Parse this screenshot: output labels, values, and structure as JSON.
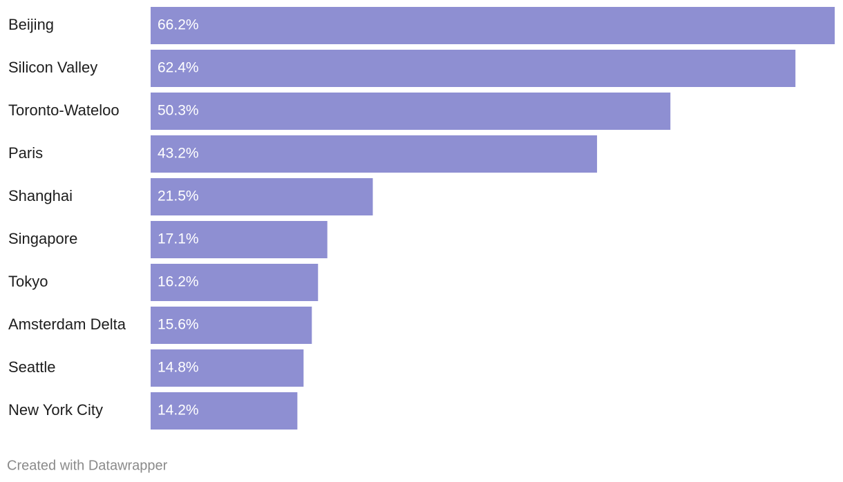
{
  "chart_data": {
    "type": "bar",
    "orientation": "horizontal",
    "categories": [
      "Beijing",
      "Silicon Valley",
      "Toronto-Wateloo",
      "Paris",
      "Shanghai",
      "Singapore",
      "Tokyo",
      "Amsterdam Delta",
      "Seattle",
      "New York City"
    ],
    "values": [
      66.2,
      62.4,
      50.3,
      43.2,
      21.5,
      17.1,
      16.2,
      15.6,
      14.8,
      14.2
    ],
    "value_labels": [
      "66.2%",
      "62.4%",
      "50.3%",
      "43.2%",
      "21.5%",
      "17.1%",
      "16.2%",
      "15.6%",
      "14.8%",
      "14.2%"
    ],
    "color": "#8e8fd2",
    "xlim": [
      0,
      66.2
    ],
    "credit": "Created with Datawrapper"
  }
}
